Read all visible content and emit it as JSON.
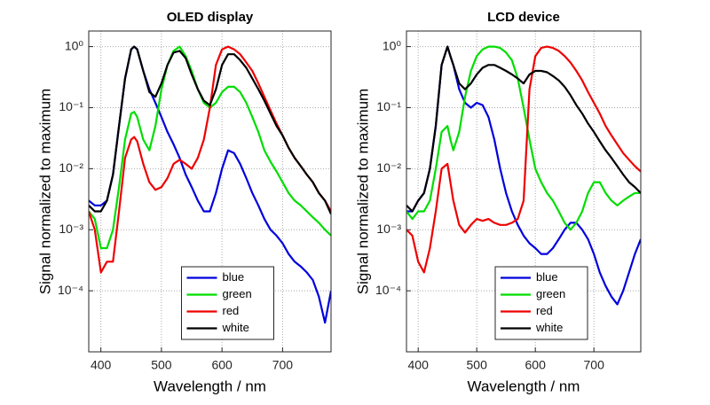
{
  "chart_data": [
    {
      "type": "line",
      "title": "OLED display",
      "xlabel": "Wavelength / nm",
      "ylabel": "Signal normalized to maximum",
      "log_y": true,
      "grid": true,
      "legend": "lower center",
      "xlim": [
        380,
        780
      ],
      "xticks": [
        400,
        500,
        600,
        700
      ],
      "ylim": [
        1e-05,
        1.8
      ],
      "yticks": [
        {
          "value": 0.0001,
          "label": "10⁻⁴"
        },
        {
          "value": 0.001,
          "label": "10⁻³"
        },
        {
          "value": 0.01,
          "label": "10⁻²"
        },
        {
          "value": 0.1,
          "label": "10⁻¹"
        },
        {
          "value": 1,
          "label": "10⁰"
        }
      ],
      "x": [
        380,
        390,
        400,
        410,
        420,
        430,
        440,
        450,
        455,
        460,
        470,
        480,
        490,
        500,
        510,
        520,
        530,
        540,
        550,
        560,
        570,
        580,
        590,
        600,
        610,
        620,
        630,
        640,
        650,
        660,
        670,
        680,
        690,
        700,
        710,
        720,
        730,
        740,
        750,
        760,
        770,
        780
      ],
      "series": [
        {
          "name": "blue",
          "color": "#0000dd",
          "values": [
            0.003,
            0.0025,
            0.0025,
            0.003,
            0.008,
            0.05,
            0.3,
            0.9,
            1.0,
            0.9,
            0.4,
            0.2,
            0.12,
            0.07,
            0.04,
            0.025,
            0.015,
            0.008,
            0.005,
            0.003,
            0.002,
            0.002,
            0.004,
            0.01,
            0.02,
            0.018,
            0.012,
            0.007,
            0.004,
            0.0025,
            0.0015,
            0.001,
            0.0008,
            0.0006,
            0.0004,
            0.0003,
            0.00025,
            0.0002,
            0.00015,
            8e-05,
            3e-05,
            0.0001
          ]
        },
        {
          "name": "green",
          "color": "#00dd00",
          "values": [
            0.002,
            0.0015,
            0.0005,
            0.0005,
            0.001,
            0.005,
            0.03,
            0.08,
            0.085,
            0.07,
            0.03,
            0.02,
            0.05,
            0.2,
            0.5,
            0.85,
            1.0,
            0.7,
            0.4,
            0.2,
            0.12,
            0.1,
            0.12,
            0.18,
            0.22,
            0.22,
            0.18,
            0.12,
            0.07,
            0.04,
            0.02,
            0.013,
            0.009,
            0.006,
            0.004,
            0.003,
            0.0025,
            0.002,
            0.0016,
            0.0013,
            0.001,
            0.0008
          ]
        },
        {
          "name": "red",
          "color": "#ee0000",
          "values": [
            0.002,
            0.001,
            0.0002,
            0.0003,
            0.0003,
            0.002,
            0.015,
            0.03,
            0.033,
            0.028,
            0.012,
            0.006,
            0.0045,
            0.005,
            0.007,
            0.012,
            0.014,
            0.012,
            0.01,
            0.015,
            0.03,
            0.1,
            0.5,
            0.9,
            1.0,
            0.9,
            0.75,
            0.55,
            0.4,
            0.25,
            0.15,
            0.09,
            0.055,
            0.035,
            0.022,
            0.015,
            0.011,
            0.008,
            0.006,
            0.004,
            0.003,
            0.002
          ]
        },
        {
          "name": "white",
          "color": "#000000",
          "values": [
            0.0025,
            0.002,
            0.002,
            0.003,
            0.008,
            0.05,
            0.3,
            0.9,
            1.0,
            0.9,
            0.4,
            0.18,
            0.15,
            0.25,
            0.5,
            0.8,
            0.85,
            0.65,
            0.35,
            0.2,
            0.13,
            0.11,
            0.2,
            0.5,
            0.75,
            0.75,
            0.6,
            0.45,
            0.3,
            0.2,
            0.13,
            0.08,
            0.05,
            0.035,
            0.022,
            0.015,
            0.011,
            0.008,
            0.006,
            0.004,
            0.003,
            0.0018
          ]
        }
      ]
    },
    {
      "type": "line",
      "title": "LCD device",
      "xlabel": "Wavelength / nm",
      "ylabel": "Signal normalized to maximum",
      "log_y": true,
      "grid": true,
      "legend": "lower center",
      "xlim": [
        380,
        780
      ],
      "xticks": [
        400,
        500,
        600,
        700
      ],
      "ylim": [
        1e-05,
        1.8
      ],
      "yticks": [
        {
          "value": 0.0001,
          "label": "10⁻⁴"
        },
        {
          "value": 0.001,
          "label": "10⁻³"
        },
        {
          "value": 0.01,
          "label": "10⁻²"
        },
        {
          "value": 0.1,
          "label": "10⁻¹"
        },
        {
          "value": 1,
          "label": "10⁰"
        }
      ],
      "x": [
        380,
        390,
        400,
        410,
        420,
        430,
        440,
        450,
        455,
        460,
        470,
        480,
        490,
        500,
        510,
        520,
        530,
        540,
        550,
        560,
        570,
        580,
        590,
        600,
        610,
        620,
        630,
        640,
        650,
        660,
        670,
        680,
        690,
        700,
        710,
        720,
        730,
        740,
        750,
        760,
        770,
        780
      ],
      "series": [
        {
          "name": "blue",
          "color": "#0000dd",
          "values": [
            0.002,
            0.002,
            0.003,
            0.004,
            0.01,
            0.05,
            0.5,
            1.0,
            0.7,
            0.5,
            0.2,
            0.12,
            0.1,
            0.12,
            0.11,
            0.07,
            0.03,
            0.01,
            0.004,
            0.002,
            0.0012,
            0.0008,
            0.0006,
            0.0005,
            0.0004,
            0.0004,
            0.0005,
            0.0007,
            0.001,
            0.0013,
            0.0013,
            0.001,
            0.0007,
            0.0004,
            0.0002,
            0.00012,
            8e-05,
            6e-05,
            0.0001,
            0.0002,
            0.0004,
            0.0007
          ]
        },
        {
          "name": "green",
          "color": "#00dd00",
          "values": [
            0.002,
            0.0015,
            0.002,
            0.002,
            0.003,
            0.01,
            0.04,
            0.05,
            0.03,
            0.02,
            0.04,
            0.15,
            0.4,
            0.7,
            0.9,
            1.0,
            1.0,
            0.95,
            0.8,
            0.6,
            0.3,
            0.1,
            0.03,
            0.01,
            0.006,
            0.004,
            0.003,
            0.002,
            0.0013,
            0.001,
            0.0013,
            0.002,
            0.004,
            0.006,
            0.006,
            0.004,
            0.003,
            0.0025,
            0.003,
            0.0035,
            0.004,
            0.004
          ]
        },
        {
          "name": "red",
          "color": "#ee0000",
          "values": [
            0.001,
            0.0008,
            0.0003,
            0.0002,
            0.0005,
            0.002,
            0.01,
            0.012,
            0.006,
            0.003,
            0.0012,
            0.0009,
            0.0012,
            0.0015,
            0.0014,
            0.0015,
            0.0013,
            0.0012,
            0.0012,
            0.0013,
            0.0015,
            0.003,
            0.2,
            0.7,
            0.95,
            1.0,
            0.95,
            0.85,
            0.7,
            0.55,
            0.4,
            0.28,
            0.18,
            0.12,
            0.08,
            0.05,
            0.035,
            0.025,
            0.018,
            0.014,
            0.011,
            0.009
          ]
        },
        {
          "name": "white",
          "color": "#000000",
          "values": [
            0.0025,
            0.002,
            0.003,
            0.004,
            0.01,
            0.05,
            0.5,
            1.0,
            0.7,
            0.5,
            0.25,
            0.2,
            0.25,
            0.35,
            0.45,
            0.5,
            0.5,
            0.45,
            0.4,
            0.35,
            0.3,
            0.25,
            0.35,
            0.4,
            0.4,
            0.38,
            0.33,
            0.28,
            0.22,
            0.16,
            0.11,
            0.08,
            0.055,
            0.04,
            0.028,
            0.02,
            0.015,
            0.011,
            0.008,
            0.006,
            0.005,
            0.004
          ]
        }
      ]
    }
  ]
}
